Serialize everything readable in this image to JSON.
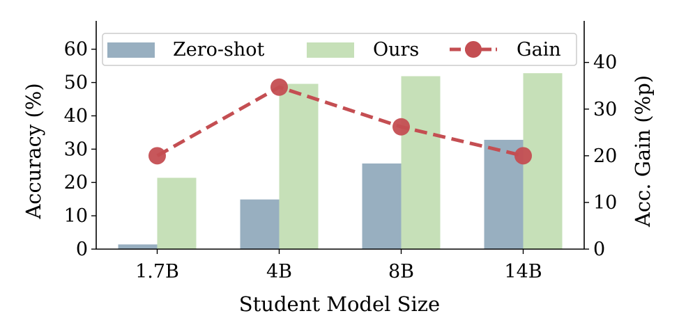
{
  "chart_data": {
    "type": "bar",
    "categories": [
      "1.7B",
      "4B",
      "8B",
      "14B"
    ],
    "xlabel": "Student Model Size",
    "ylabel": "Accuracy (%)",
    "y2label": "Acc. Gain (%p)",
    "ylim": [
      0,
      68.5
    ],
    "yticks": [
      "0",
      "10",
      "20",
      "30",
      "40",
      "50",
      "60"
    ],
    "y2lim": [
      0,
      48.9
    ],
    "y2ticks": [
      "0",
      "10",
      "20",
      "30",
      "40"
    ],
    "series": [
      {
        "name": "Zero-shot",
        "axis": "left",
        "kind": "bar",
        "color": "#98afc0",
        "values": [
          1.4,
          14.9,
          25.7,
          32.8
        ]
      },
      {
        "name": "Ours",
        "axis": "left",
        "kind": "bar",
        "color": "#c6e0b8",
        "values": [
          21.4,
          49.6,
          51.9,
          52.8
        ]
      },
      {
        "name": "Gain",
        "axis": "right",
        "kind": "line",
        "color": "#c44e52",
        "values": [
          20.0,
          34.7,
          26.2,
          20.0
        ]
      }
    ],
    "legend": {
      "placement": "top"
    },
    "grid": false
  }
}
